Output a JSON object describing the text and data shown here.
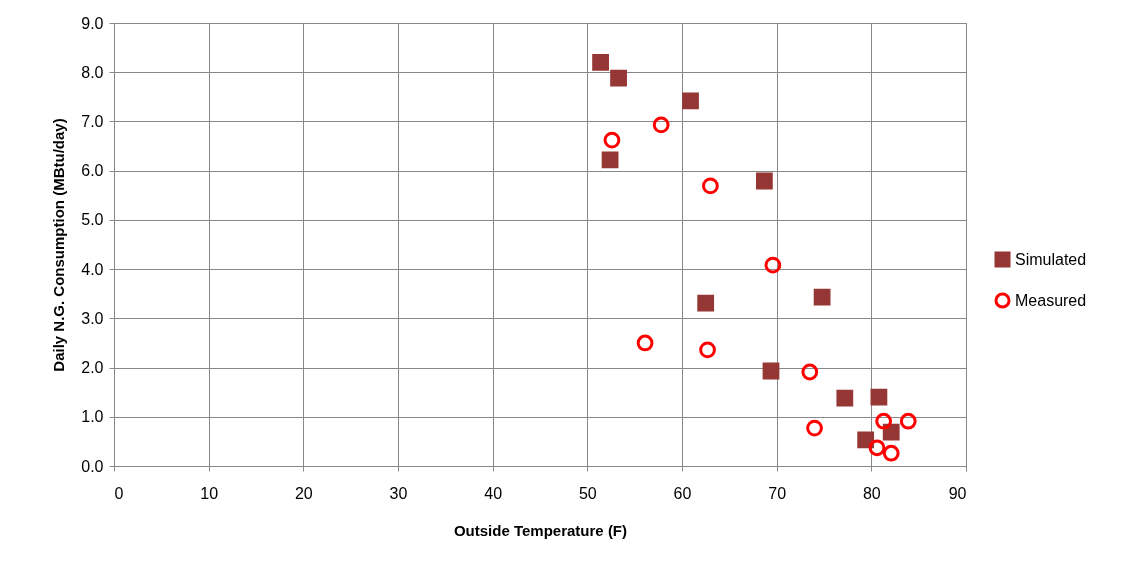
{
  "chart_data": {
    "type": "scatter",
    "xlabel": "Outside Temperature (F)",
    "ylabel": "Daily N.G. Consumption (MBtu/day)",
    "xlim": [
      0,
      90
    ],
    "xticks": [
      0,
      10,
      20,
      30,
      40,
      50,
      60,
      70,
      80,
      90
    ],
    "ylim": [
      0,
      9
    ],
    "yticks": [
      {
        "value": 0,
        "label": "0.0"
      },
      {
        "value": 1,
        "label": "1.0"
      },
      {
        "value": 2,
        "label": "2.0"
      },
      {
        "value": 3,
        "label": "3.0"
      },
      {
        "value": 4,
        "label": "4.0"
      },
      {
        "value": 5,
        "label": "5.0"
      },
      {
        "value": 6,
        "label": "6.0"
      },
      {
        "value": 7,
        "label": "7.0"
      },
      {
        "value": 8,
        "label": "8.0"
      },
      {
        "value": 9,
        "label": "9.0"
      }
    ],
    "grid": true,
    "legend": "right",
    "series": [
      {
        "name": "Simulated",
        "color": "#953735",
        "marker": "square",
        "x": [
          51.4,
          53.3,
          60.9,
          52.4,
          68.7,
          74.8,
          62.5,
          69.4,
          77.2,
          80.8,
          82.1,
          79.4
        ],
        "values": [
          8.2,
          7.88,
          7.42,
          6.22,
          5.79,
          3.43,
          3.31,
          1.93,
          1.38,
          1.4,
          0.69,
          0.53
        ]
      },
      {
        "name": "Measured",
        "color": "#ff0000",
        "marker": "circle",
        "x": [
          52.6,
          57.8,
          63.0,
          69.6,
          56.1,
          62.7,
          73.5,
          74.0,
          81.3,
          83.9,
          80.6,
          82.1
        ],
        "values": [
          6.62,
          6.93,
          5.69,
          4.08,
          2.5,
          2.36,
          1.91,
          0.77,
          0.91,
          0.91,
          0.37,
          0.26
        ]
      }
    ]
  }
}
